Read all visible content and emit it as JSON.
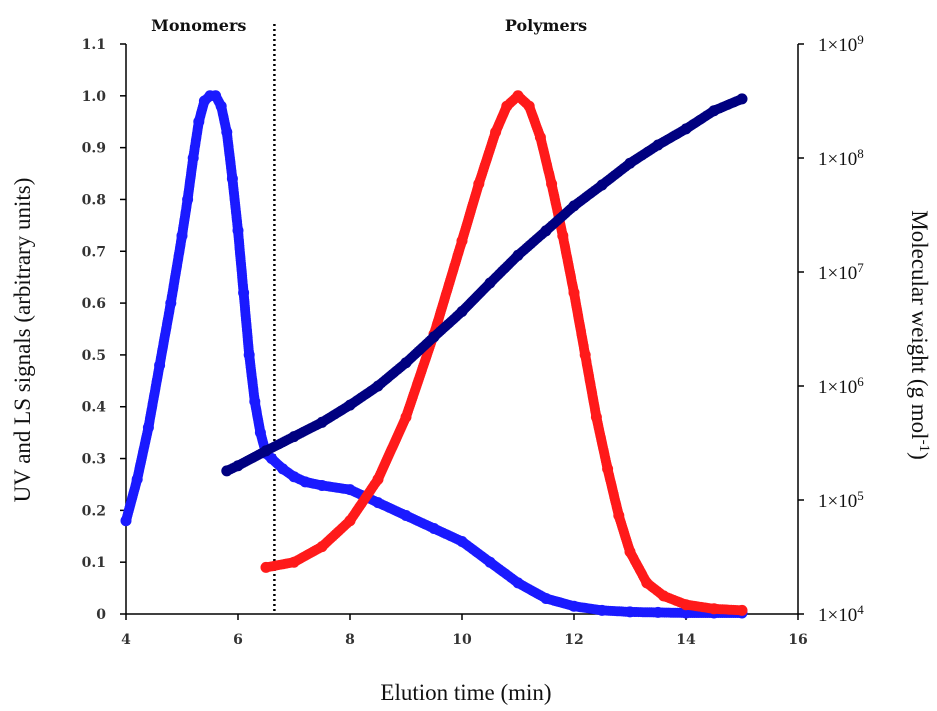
{
  "chart_data": {
    "type": "scatter",
    "xlabel": "Elution time (min)",
    "ylabel": "UV and LS signals (arbitrary units)",
    "y2label": "Molecular weight (g mol-1)",
    "y2label_parts": [
      "Molecular weight (g mol",
      "-1",
      ")"
    ],
    "xlim": [
      4,
      16
    ],
    "ylim": [
      0,
      1.1
    ],
    "y2lim": [
      10000,
      1000000000
    ],
    "y2scale": "log",
    "x_ticks": [
      "4",
      "6",
      "8",
      "10",
      "12",
      "14",
      "16"
    ],
    "y_ticks": [
      "0",
      "0.1",
      "0.2",
      "0.3",
      "0.4",
      "0.5",
      "0.6",
      "0.7",
      "0.8",
      "0.9",
      "1.0",
      "1.1"
    ],
    "y2_ticks": [
      {
        "mantissa": "1×10",
        "exponent": "4",
        "value": 10000
      },
      {
        "mantissa": "1×10",
        "exponent": "5",
        "value": 100000
      },
      {
        "mantissa": "1×10",
        "exponent": "6",
        "value": 1000000
      },
      {
        "mantissa": "1×10",
        "exponent": "7",
        "value": 10000000
      },
      {
        "mantissa": "1×10",
        "exponent": "8",
        "value": 100000000
      },
      {
        "mantissa": "1×10",
        "exponent": "9",
        "value": 1000000000
      }
    ],
    "regions": [
      {
        "label": "Monomers",
        "x_center": 5.3
      },
      {
        "label": "Polymers",
        "x_center": 11.5
      }
    ],
    "divider_x": 6.65,
    "grid": false,
    "series": [
      {
        "color": "#1a1aff",
        "axis": "left",
        "x": [
          4.0,
          4.2,
          4.4,
          4.6,
          4.8,
          5.0,
          5.1,
          5.2,
          5.3,
          5.4,
          5.5,
          5.6,
          5.7,
          5.8,
          5.9,
          6.0,
          6.1,
          6.2,
          6.3,
          6.4,
          6.5,
          6.6,
          6.8,
          7.0,
          7.2,
          7.5,
          8.0,
          8.5,
          9.0,
          9.5,
          10.0,
          10.5,
          11.0,
          11.5,
          12.0,
          12.5,
          13.0,
          13.5,
          14.0,
          14.5,
          15.0
        ],
        "y": [
          0.18,
          0.26,
          0.36,
          0.48,
          0.6,
          0.73,
          0.8,
          0.88,
          0.95,
          0.99,
          1.0,
          1.0,
          0.98,
          0.93,
          0.84,
          0.74,
          0.62,
          0.5,
          0.41,
          0.35,
          0.31,
          0.3,
          0.28,
          0.265,
          0.255,
          0.248,
          0.24,
          0.215,
          0.19,
          0.165,
          0.14,
          0.1,
          0.06,
          0.03,
          0.015,
          0.007,
          0.004,
          0.003,
          0.002,
          0.002,
          0.002
        ]
      },
      {
        "color": "#ff1a1a",
        "axis": "left",
        "x": [
          6.5,
          7.0,
          7.5,
          8.0,
          8.5,
          9.0,
          9.5,
          10.0,
          10.3,
          10.6,
          10.8,
          11.0,
          11.2,
          11.4,
          11.6,
          11.8,
          12.0,
          12.2,
          12.4,
          12.6,
          12.8,
          13.0,
          13.3,
          13.6,
          14.0,
          14.5,
          15.0
        ],
        "y": [
          0.09,
          0.1,
          0.13,
          0.18,
          0.26,
          0.38,
          0.54,
          0.72,
          0.83,
          0.93,
          0.98,
          1.0,
          0.98,
          0.92,
          0.83,
          0.73,
          0.62,
          0.5,
          0.38,
          0.28,
          0.19,
          0.12,
          0.06,
          0.035,
          0.018,
          0.01,
          0.007
        ]
      },
      {
        "color": "#000080",
        "axis": "right",
        "x": [
          5.8,
          6.0,
          6.5,
          7.0,
          7.5,
          8.0,
          8.5,
          9.0,
          9.5,
          10.0,
          10.5,
          11.0,
          11.5,
          12.0,
          12.5,
          13.0,
          13.5,
          14.0,
          14.5,
          15.0
        ],
        "y": [
          180000,
          200000,
          270000,
          360000,
          480000,
          680000,
          1000000,
          1600000,
          2700000,
          4500000,
          8000000,
          14000000,
          23000000,
          38000000,
          58000000,
          90000000,
          130000000,
          180000000,
          260000000,
          330000000
        ]
      }
    ]
  }
}
